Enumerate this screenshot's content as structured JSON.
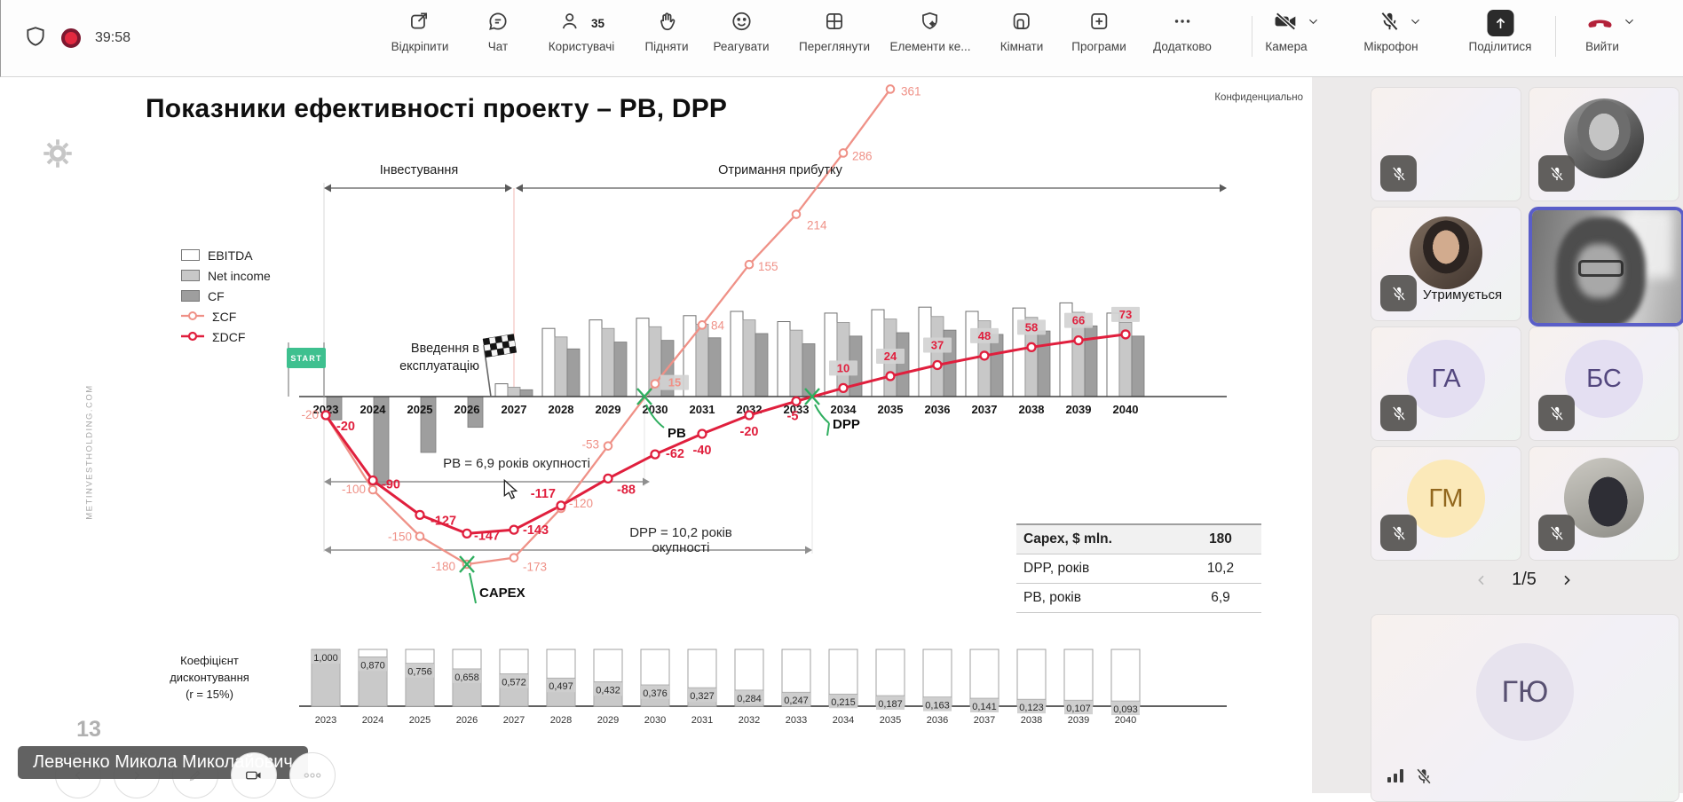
{
  "meeting": {
    "timer": "39:58",
    "toolbar": {
      "unpin": "Відкріпити",
      "chat": "Чат",
      "people": "Користувачі",
      "people_count": "35",
      "raise": "Підняти",
      "react": "Реагувати",
      "view": "Переглянути",
      "control": "Елементи ке...",
      "rooms": "Кімнати",
      "apps": "Програми",
      "more": "Додатково",
      "camera": "Камера",
      "mic": "Мікрофон",
      "share": "Поділитися",
      "leave": "Вийти"
    }
  },
  "slide": {
    "title": "Показники ефективності проекту – PB, DPP",
    "confidential": "Конфиденциально",
    "page_number": "13",
    "watermark": "METINVESTHOLDING.COM",
    "phase_invest": "Інвестування",
    "phase_profit": "Отримання прибутку",
    "commissioning": "Введення в експлуатацію",
    "start_flag": "START",
    "pb_span": "PB = 6,9 років окупності",
    "dpp_span": "DPP = 10,2 років окупності",
    "pb_label": "PB",
    "dpp_label": "DPP",
    "capex_label": "CAPEX",
    "legend": [
      "EBITDA",
      "Net income",
      "CF",
      "ΣCF",
      "ΣDCF"
    ],
    "table": {
      "rows": [
        {
          "label": "Capex, $ mln.",
          "value": "180"
        },
        {
          "label": "DPP, років",
          "value": "10,2"
        },
        {
          "label": "PB, років",
          "value": "6,9"
        }
      ]
    },
    "discount_label": "Коефіцієнт дисконтування",
    "discount_rate": "(r = 15%)"
  },
  "chart_data": {
    "type": "combo",
    "title": "Показники ефективності проекту – PB, DPP",
    "unit": "$ mln",
    "categories": [
      2023,
      2024,
      2025,
      2026,
      2027,
      2028,
      2029,
      2030,
      2031,
      2032,
      2033,
      2034,
      2035,
      2036,
      2037,
      2038,
      2039,
      2040
    ],
    "bars_values_estimated_from_pixels": true,
    "series": [
      {
        "name": "EBITDA",
        "type": "bar",
        "color": "#ffffff",
        "values": [
          null,
          null,
          null,
          null,
          15,
          80,
          90,
          92,
          95,
          100,
          88,
          98,
          102,
          105,
          100,
          104,
          110,
          98
        ]
      },
      {
        "name": "Net income",
        "type": "bar",
        "color": "#c8c8c8",
        "values": [
          null,
          null,
          null,
          null,
          11,
          70,
          80,
          82,
          85,
          90,
          78,
          87,
          91,
          94,
          89,
          93,
          99,
          87
        ]
      },
      {
        "name": "CF",
        "type": "bar",
        "color": "#9e9e9e",
        "values": [
          -25,
          -95,
          -60,
          -33,
          8,
          56,
          64,
          66,
          69,
          74,
          62,
          71,
          75,
          78,
          73,
          77,
          83,
          71
        ]
      },
      {
        "name": "ΣCF",
        "type": "line",
        "color": "#ef9187",
        "values": [
          -20,
          -100,
          -150,
          -180,
          -173,
          -120,
          -53,
          15,
          84,
          155,
          214,
          286,
          361,
          null,
          null,
          null,
          null,
          null
        ]
      },
      {
        "name": "ΣDCF",
        "type": "line",
        "color": "#e01f3d",
        "values": [
          -20,
          -90,
          -127,
          -147,
          -143,
          -117,
          -88,
          -62,
          -40,
          -20,
          -5,
          10,
          24,
          37,
          48,
          58,
          66,
          73
        ]
      }
    ],
    "scf_labels": [
      "-20",
      "-100",
      "-150",
      "-180",
      "-173",
      "-120",
      "-53",
      "15",
      "84",
      "155",
      "214",
      "286",
      "361"
    ],
    "sdcf_labels": [
      "-20",
      "-90",
      "-127",
      "-147",
      "-143",
      "-117",
      "-88",
      "-62",
      "-40",
      "-20",
      "-5",
      "10",
      "24",
      "37",
      "48",
      "58",
      "66",
      "73"
    ],
    "payback": {
      "pb_years": 6.9,
      "dpp_years": 10.2,
      "capex_mln_usd": 180
    },
    "discount": {
      "rate_pct": 15,
      "values": [
        1.0,
        0.87,
        0.756,
        0.658,
        0.572,
        0.497,
        0.432,
        0.376,
        0.327,
        0.284,
        0.247,
        0.215,
        0.187,
        0.163,
        0.141,
        0.123,
        0.107,
        0.093
      ],
      "labels": [
        "1,000",
        "0,870",
        "0,756",
        "0,658",
        "0,572",
        "0,497",
        "0,432",
        "0,376",
        "0,327",
        "0,284",
        "0,247",
        "0,215",
        "0,187",
        "0,163",
        "0,141",
        "0,123",
        "0,107",
        "0,093"
      ]
    },
    "legend_position": "left",
    "grid": false
  },
  "panel": {
    "hold_label": "Утримується",
    "pagination": "1/5",
    "tiles": [
      {
        "type": "photo"
      },
      {
        "type": "photo"
      },
      {
        "type": "photo",
        "status": "Утримується"
      },
      {
        "type": "video",
        "active": true
      },
      {
        "type": "initials",
        "initials": "ГА"
      },
      {
        "type": "initials",
        "initials": "БС"
      },
      {
        "type": "initials",
        "initials": "ГМ"
      },
      {
        "type": "photo"
      },
      {
        "type": "initials",
        "initials": "ГЮ",
        "large": true
      }
    ]
  },
  "presenter": {
    "name_tag": "Левченко Микола Миколайович"
  }
}
